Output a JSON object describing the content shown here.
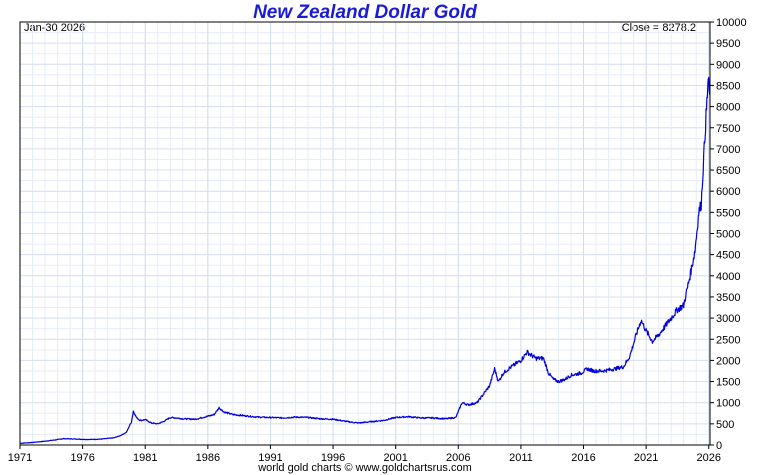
{
  "chart_data": {
    "type": "line",
    "title": "New Zealand Dollar Gold",
    "date_label": "Jan-30  2026",
    "close_label": "Close = 8278.2",
    "footer": "world gold charts © www.goldchartsrus.com",
    "xlim": [
      1971,
      2026.1
    ],
    "ylim": [
      0,
      10000
    ],
    "x_ticks": [
      1971,
      1976,
      1981,
      1986,
      1991,
      1996,
      2001,
      2006,
      2011,
      2016,
      2021,
      2026
    ],
    "y_ticks": [
      0,
      500,
      1000,
      1500,
      2000,
      2500,
      3000,
      3500,
      4000,
      4500,
      5000,
      5500,
      6000,
      6500,
      7000,
      7500,
      8000,
      8500,
      9000,
      9500,
      10000
    ],
    "grid": true,
    "line_color": "#0000dd",
    "series": [
      {
        "x": [
          1971.0,
          1972.0,
          1973.0,
          1973.8,
          1974.5,
          1975.5,
          1976.5,
          1977.5,
          1978.5,
          1979.0,
          1979.5,
          1979.9,
          1980.05,
          1980.3,
          1980.6,
          1981.0,
          1981.5,
          1982.0,
          1982.5,
          1983.0,
          1983.5,
          1984.0,
          1985.0,
          1986.0,
          1986.5,
          1986.9,
          1987.3,
          1988.0,
          1989.0,
          1990.0,
          1991.0,
          1992.0,
          1993.0,
          1994.0,
          1995.0,
          1996.0,
          1997.0,
          1998.0,
          1999.0,
          2000.0,
          2001.0,
          2002.0,
          2003.0,
          2004.0,
          2005.0,
          2005.8,
          2006.3,
          2006.8,
          2007.5,
          2008.0,
          2008.5,
          2008.9,
          2009.2,
          2009.6,
          2010.0,
          2010.5,
          2011.0,
          2011.5,
          2011.7,
          2012.2,
          2012.8,
          2013.2,
          2013.6,
          2014.0,
          2014.5,
          2015.0,
          2015.8,
          2016.3,
          2016.8,
          2017.5,
          2018.5,
          2019.2,
          2019.7,
          2020.2,
          2020.6,
          2021.0,
          2021.5,
          2022.0,
          2022.5,
          2023.0,
          2023.5,
          2024.0,
          2024.5,
          2024.9,
          2025.2,
          2025.4,
          2025.6,
          2025.75,
          2025.85,
          2025.95,
          2026.08
        ],
        "y": [
          40,
          60,
          90,
          120,
          150,
          140,
          130,
          140,
          170,
          220,
          300,
          550,
          800,
          650,
          580,
          600,
          520,
          500,
          560,
          650,
          640,
          620,
          610,
          680,
          720,
          880,
          780,
          720,
          690,
          660,
          650,
          640,
          660,
          650,
          620,
          610,
          560,
          520,
          550,
          580,
          650,
          670,
          640,
          640,
          620,
          650,
          1000,
          950,
          1000,
          1200,
          1400,
          1800,
          1500,
          1700,
          1800,
          1900,
          2000,
          2200,
          2150,
          2050,
          2050,
          1700,
          1550,
          1500,
          1550,
          1650,
          1700,
          1800,
          1750,
          1750,
          1800,
          1850,
          2100,
          2600,
          2950,
          2700,
          2450,
          2600,
          2800,
          3000,
          3200,
          3300,
          4000,
          4600,
          5500,
          5700,
          6800,
          7600,
          8100,
          8600,
          8278.2
        ]
      }
    ]
  }
}
